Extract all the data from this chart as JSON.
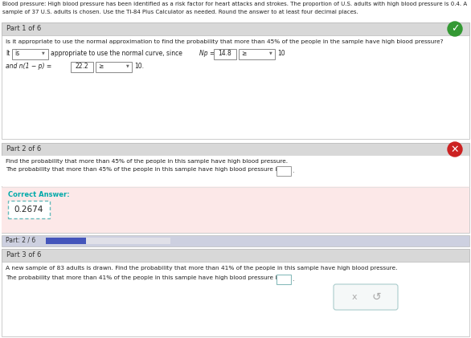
{
  "header_line1": "Blood pressure: High blood pressure has been identified as a risk factor for heart attacks and strokes. The proportion of U.S. adults with high blood pressure is 0.4. A",
  "header_line2": "sample of 37 U.S. adults is chosen. Use the TI-84 Plus Calculator as needed. Round the answer to at least four decimal places.",
  "part1_header": "Part 1 of 6",
  "part1_question": "Is it appropriate to use the normal approximation to find the probability that more than 45% of the people in the sample have high blood pressure?",
  "part1_it": "It",
  "part1_is": "is",
  "part1_mid": "appropriate to use the normal curve, since",
  "part1_np_label": "Np =",
  "part1_np_val": "14.8",
  "part1_ge1": "≥",
  "part1_ten1": "10",
  "part1_np2_label": "and n(1 − p) =",
  "part1_np2_val": "22.2",
  "part1_ge2": "≥",
  "part1_ten2": "10.",
  "part2_header": "Part 2 of 6",
  "part2_q1": "Find the probability that more than 45% of the people in this sample have high blood pressure.",
  "part2_q2": "The probability that more than 45% of the people in this sample have high blood pressure is",
  "correct_label": "Correct Answer:",
  "correct_value": "0.2674",
  "progress_label": "Part: 2 / 6",
  "part3_header": "Part 3 of 6",
  "part3_q1": "A new sample of 83 adults is drawn. Find the probability that more than 41% of the people in this sample have high blood pressure.",
  "part3_q2": "The probability that more than 41% of the people in this sample have high blood pressure is",
  "btn_x": "x",
  "btn_r": "↺",
  "bg": "#ffffff",
  "gray_bar": "#d8d8d8",
  "gray_bar_edge": "#bbbbbb",
  "pink_bg": "#fce8e8",
  "pink_bg2": "#fdf0f0",
  "progress_bar_bg": "#cdd0e0",
  "progress_bar_fill": "#4455bb",
  "green_circle": "#339933",
  "red_circle": "#cc2222",
  "teal_text": "#00aaaa",
  "teal_border": "#66bbbb",
  "text_dark": "#222222",
  "input_border": "#999999",
  "btn_border": "#aacccc",
  "btn_bg": "#f5f8f8"
}
